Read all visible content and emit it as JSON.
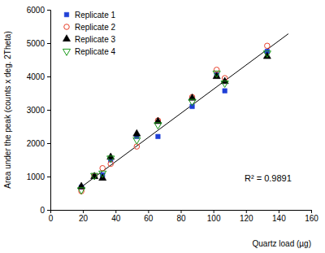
{
  "chart_data": {
    "type": "scatter",
    "x_label": "Quartz load (µg)",
    "y_label": "Area under the peak (counts x deg. 2Theta)",
    "annotation": "R² = 0.9891",
    "x": [
      19,
      27,
      32,
      37,
      53,
      66,
      87,
      102,
      107,
      133
    ],
    "series": [
      {
        "name": "Replicate 1",
        "color": "#1f3fd6",
        "marker": "square",
        "values": [
          680,
          1020,
          1050,
          1500,
          2200,
          2200,
          3100,
          4050,
          3570,
          4750
        ]
      },
      {
        "name": "Replicate 2",
        "color": "#e8402a",
        "marker": "circle-open",
        "values": [
          560,
          1020,
          1250,
          1380,
          1900,
          2680,
          3380,
          4200,
          3950,
          4920
        ]
      },
      {
        "name": "Replicate 3",
        "color": "#000000",
        "marker": "triangle",
        "values": [
          700,
          1000,
          950,
          1580,
          2280,
          2650,
          3350,
          4000,
          3850,
          4600
        ]
      },
      {
        "name": "Replicate 4",
        "color": "#1a9a1a",
        "marker": "triangle-down-open",
        "values": [
          600,
          1030,
          1100,
          1550,
          2100,
          2550,
          3250,
          4100,
          3800,
          4700
        ]
      }
    ],
    "fit_line": {
      "x": [
        18,
        146
      ],
      "values": [
        650,
        5280
      ],
      "color": "#000000",
      "line_style": "solid"
    },
    "xlim": [
      0,
      160
    ],
    "xticks": [
      0,
      20,
      40,
      60,
      80,
      100,
      120,
      140,
      160
    ],
    "ylim": [
      0,
      6000
    ],
    "yticks": [
      0,
      1000,
      2000,
      3000,
      4000,
      5000,
      6000
    ],
    "grid": false,
    "legend": "top-left"
  }
}
